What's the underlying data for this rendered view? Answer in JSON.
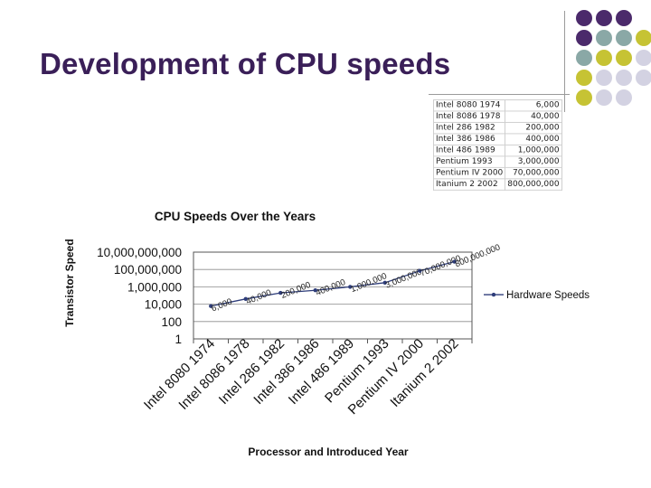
{
  "slide": {
    "title": "Development of CPU speeds",
    "colors": {
      "title": "#3a1f58",
      "purple": "#4b2a6b",
      "teal": "#8aa8a6",
      "olive": "#c6c334",
      "lavender": "#d3d2e2"
    }
  },
  "table": {
    "rows": [
      {
        "name": "Intel 8080 1974",
        "value": "6,000"
      },
      {
        "name": "Intel 8086 1978",
        "value": "40,000"
      },
      {
        "name": "Intel 286 1982",
        "value": "200,000"
      },
      {
        "name": "Intel 386 1986",
        "value": "400,000"
      },
      {
        "name": "Intel 486 1989",
        "value": "1,000,000"
      },
      {
        "name": "Pentium 1993",
        "value": "3,000,000"
      },
      {
        "name": "Pentium IV 2000",
        "value": "70,000,000"
      },
      {
        "name": "Itanium 2 2002",
        "value": "800,000,000"
      }
    ]
  },
  "chart_data": {
    "type": "line",
    "title": "CPU Speeds Over the Years",
    "xlabel": "Processor and Introduced Year",
    "ylabel": "Transistor Speed",
    "y_scale": "log",
    "ylim": [
      1,
      10000000000
    ],
    "y_ticks": [
      "1",
      "100",
      "10,000",
      "1,000,000",
      "100,000,000",
      "10,000,000,000"
    ],
    "categories": [
      "Intel 8080 1974",
      "Intel 8086 1978",
      "Intel 286 1982",
      "Intel 386 1986",
      "Intel 486 1989",
      "Pentium 1993",
      "Pentium IV 2000",
      "Itanium 2 2002"
    ],
    "series": [
      {
        "name": "Hardware Speeds",
        "values": [
          6000,
          40000,
          200000,
          400000,
          1000000,
          3000000,
          70000000,
          800000000
        ],
        "labels": [
          "6,000",
          "40,000",
          "200,000",
          "400,000",
          "1,000,000",
          "3,000,000",
          "70,000,000",
          "800,000,000"
        ],
        "color": "#2e3d7a"
      }
    ],
    "grid": true,
    "legend": "right"
  }
}
